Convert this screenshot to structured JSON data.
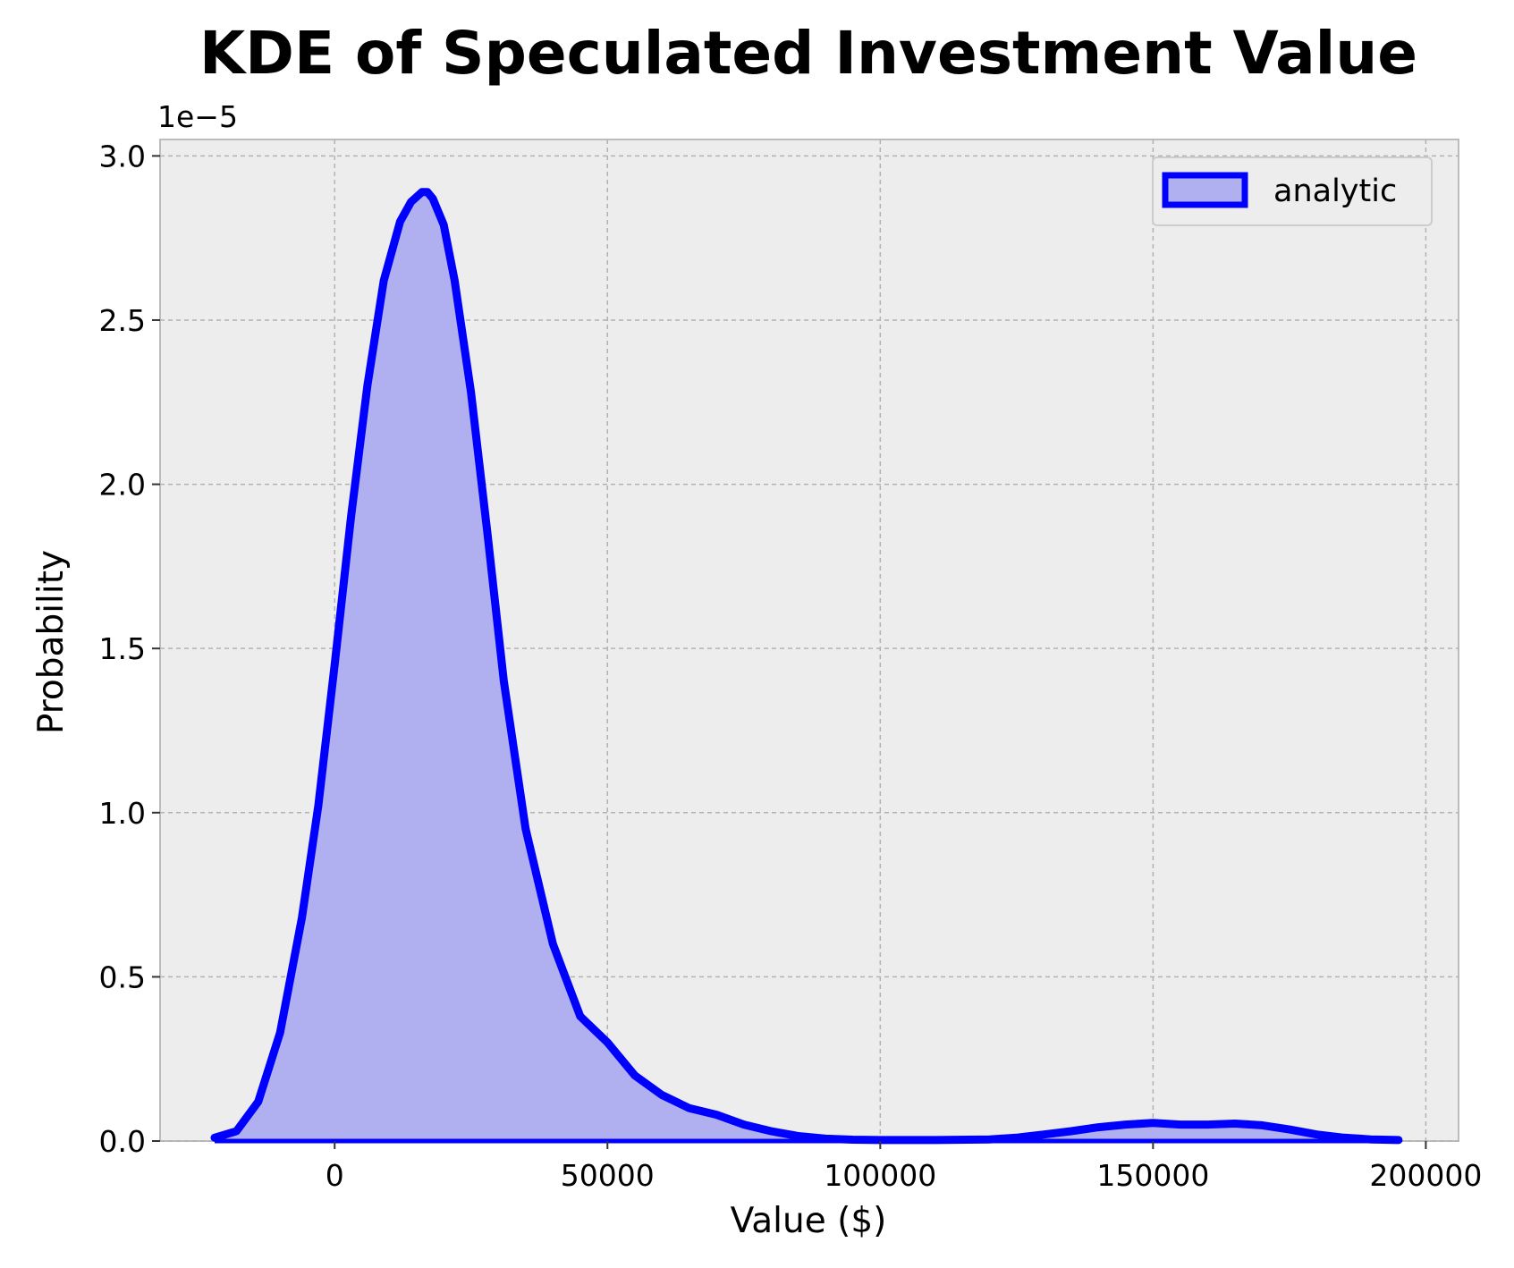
{
  "chart_data": {
    "type": "area",
    "title": "KDE of Speculated Investment Value",
    "xlabel": "Value ($)",
    "ylabel": "Probability",
    "y_offset_label": "1e−5",
    "y_scale": 1e-05,
    "xlim": [
      -32000,
      206000
    ],
    "ylim": [
      0,
      3.05
    ],
    "xticks": [
      0,
      50000,
      100000,
      150000,
      200000
    ],
    "xtick_labels": [
      "0",
      "50000",
      "100000",
      "150000",
      "200000"
    ],
    "yticks": [
      0,
      0.5,
      1.0,
      1.5,
      2.0,
      2.5,
      3.0
    ],
    "ytick_labels": [
      "0.0",
      "0.5",
      "1.0",
      "1.5",
      "2.0",
      "2.5",
      "3.0"
    ],
    "grid": true,
    "legend_position": "top-right",
    "series": [
      {
        "name": "analytic",
        "color": "#0000ff",
        "fill_color": "#b0b0f0",
        "x": [
          -22000,
          -18000,
          -14000,
          -10000,
          -6000,
          -3000,
          0,
          3000,
          6000,
          9000,
          12000,
          14000,
          16000,
          17000,
          18000,
          20000,
          22000,
          25000,
          28000,
          31000,
          35000,
          40000,
          45000,
          50000,
          55000,
          60000,
          65000,
          70000,
          75000,
          80000,
          85000,
          90000,
          95000,
          100000,
          110000,
          120000,
          125000,
          130000,
          135000,
          140000,
          145000,
          150000,
          155000,
          160000,
          165000,
          170000,
          175000,
          180000,
          185000,
          190000,
          195000
        ],
        "y": [
          0.01,
          0.03,
          0.12,
          0.33,
          0.68,
          1.02,
          1.45,
          1.9,
          2.3,
          2.62,
          2.8,
          2.86,
          2.89,
          2.89,
          2.87,
          2.79,
          2.62,
          2.28,
          1.85,
          1.4,
          0.95,
          0.6,
          0.38,
          0.3,
          0.2,
          0.14,
          0.1,
          0.08,
          0.05,
          0.03,
          0.015,
          0.007,
          0.004,
          0.003,
          0.003,
          0.005,
          0.01,
          0.02,
          0.03,
          0.042,
          0.05,
          0.055,
          0.05,
          0.05,
          0.053,
          0.048,
          0.035,
          0.02,
          0.01,
          0.005,
          0.003
        ]
      }
    ]
  }
}
